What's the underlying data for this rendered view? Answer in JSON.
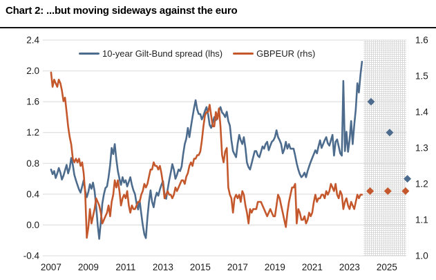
{
  "title": "Chart 2: ...but moving sideways against the euro",
  "legend": [
    {
      "label": "10-year Gilt-Bund spread (lhs)",
      "color": "#4d6c8d"
    },
    {
      "label": "GBPEUR (rhs)",
      "color": "#c4582c"
    }
  ],
  "colors": {
    "gridline": "#d9d9d9",
    "hatch_line": "#d8d8d8",
    "text": "#1a1a1a",
    "title_rule": "#111111",
    "blue_series": "#4d6c8d",
    "orange_series": "#c4582c"
  },
  "chart_data": {
    "type": "line",
    "title": "Chart 2: ...but moving sideways against the euro",
    "grid": "horizontal",
    "legend_position": "top",
    "x_axis": {
      "tick_labels": [
        "2007",
        "2009",
        "2011",
        "2013",
        "2015",
        "2017",
        "2019",
        "2021",
        "2023",
        "2025"
      ],
      "tick_values": [
        2007,
        2009,
        2011,
        2013,
        2015,
        2017,
        2019,
        2021,
        2023,
        2025
      ],
      "range": [
        2006.56,
        2026.04
      ]
    },
    "y_axis_left": {
      "title": "10-year Gilt-Bund spread",
      "tick_labels": [
        "2.4",
        "2.0",
        "1.6",
        "1.2",
        "0.8",
        "0.4",
        "0.0",
        "-0.4"
      ],
      "tick_values": [
        2.4,
        2.0,
        1.6,
        1.2,
        0.8,
        0.4,
        0.0,
        -0.4
      ],
      "range": [
        -0.4,
        2.4
      ]
    },
    "y_axis_right": {
      "title": "GBPEUR",
      "tick_labels": [
        "1.6",
        "1.5",
        "1.4",
        "1.3",
        "1.2",
        "1.1",
        "1.0"
      ],
      "tick_values": [
        1.6,
        1.5,
        1.4,
        1.3,
        1.2,
        1.1,
        1.0
      ],
      "range": [
        1.0,
        1.6
      ]
    },
    "forecast_region": {
      "x_start": 2023.75,
      "x_end": 2026.04
    },
    "series": [
      {
        "name": "10-year Gilt-Bund spread (lhs)",
        "axis": "left",
        "color": "#4d6c8d",
        "x_start": 2007.0,
        "x_step": 0.0833333,
        "values": [
          0.72,
          0.66,
          0.7,
          0.61,
          0.67,
          0.74,
          0.68,
          0.59,
          0.64,
          0.71,
          0.78,
          0.67,
          0.74,
          0.87,
          0.78,
          0.65,
          0.58,
          0.52,
          0.46,
          0.42,
          0.5,
          0.58,
          0.44,
          0.36,
          0.43,
          0.53,
          0.47,
          0.55,
          0.44,
          0.25,
          0.0,
          -0.18,
          0.04,
          0.28,
          0.4,
          0.48,
          0.5,
          0.62,
          0.78,
          1.0,
          0.92,
          1.05,
          0.85,
          0.7,
          0.6,
          0.52,
          0.62,
          0.55,
          0.58,
          0.5,
          0.56,
          0.62,
          0.52,
          0.45,
          0.4,
          0.28,
          0.2,
          0.32,
          0.15,
          0.0,
          -0.12,
          -0.17,
          0.1,
          0.3,
          0.45,
          0.3,
          0.23,
          0.35,
          0.42,
          0.38,
          0.46,
          0.52,
          0.57,
          0.4,
          0.34,
          0.46,
          0.58,
          0.68,
          0.79,
          0.72,
          0.6,
          0.65,
          0.72,
          0.7,
          0.76,
          0.92,
          1.05,
          1.12,
          1.26,
          1.14,
          1.28,
          1.4,
          1.52,
          1.62,
          1.5,
          1.44,
          1.44,
          1.37,
          1.42,
          1.48,
          1.53,
          1.44,
          1.3,
          1.26,
          1.33,
          1.4,
          1.36,
          1.42,
          1.48,
          1.53,
          1.46,
          1.44,
          1.4,
          1.47,
          1.35,
          1.29,
          1.1,
          0.96,
          0.92,
          0.88,
          1.05,
          1.17,
          1.1,
          1.05,
          1.14,
          1.0,
          0.81,
          0.75,
          0.72,
          0.8,
          0.88,
          0.96,
          0.96,
          0.9,
          0.88,
          0.95,
          1.02,
          0.99,
          1.05,
          1.08,
          0.97,
          1.03,
          1.08,
          1.1,
          1.14,
          1.23,
          1.14,
          1.1,
          1.05,
          0.93,
          0.98,
          1.08,
          0.99,
          1.05,
          0.99,
          0.99,
          0.99,
          0.9,
          0.8,
          0.72,
          0.66,
          0.62,
          0.64,
          0.68,
          0.62,
          0.7,
          0.76,
          0.82,
          0.87,
          0.92,
          0.97,
          0.93,
          1.02,
          1.1,
          1.0,
          1.05,
          1.1,
          1.14,
          1.06,
          1.03,
          1.1,
          1.17,
          0.9,
          1.08,
          1.11,
          1.02,
          0.93,
          0.9,
          1.87,
          0.96,
          1.21,
          0.95,
          1.1,
          1.35,
          1.05,
          1.3,
          1.5,
          1.84,
          1.72,
          1.95,
          2.12
        ],
        "forecast": {
          "x": [
            2024.15,
            2025.15,
            2026.1
          ],
          "values": [
            1.6,
            1.2,
            0.6
          ]
        }
      },
      {
        "name": "GBPEUR (rhs)",
        "axis": "right",
        "color": "#c4582c",
        "x_start": 2007.0,
        "x_step": 0.0833333,
        "values": [
          1.51,
          1.47,
          1.49,
          1.48,
          1.47,
          1.49,
          1.48,
          1.46,
          1.43,
          1.44,
          1.4,
          1.36,
          1.33,
          1.31,
          1.27,
          1.26,
          1.27,
          1.26,
          1.27,
          1.25,
          1.26,
          1.23,
          1.17,
          1.05,
          1.08,
          1.13,
          1.09,
          1.11,
          1.13,
          1.16,
          1.15,
          1.14,
          1.12,
          1.09,
          1.1,
          1.11,
          1.12,
          1.14,
          1.11,
          1.15,
          1.17,
          1.21,
          1.19,
          1.21,
          1.18,
          1.14,
          1.16,
          1.17,
          1.16,
          1.18,
          1.14,
          1.12,
          1.14,
          1.13,
          1.13,
          1.14,
          1.15,
          1.15,
          1.17,
          1.18,
          1.2,
          1.19,
          1.2,
          1.22,
          1.24,
          1.24,
          1.26,
          1.25,
          1.25,
          1.24,
          1.25,
          1.23,
          1.2,
          1.16,
          1.17,
          1.18,
          1.17,
          1.17,
          1.16,
          1.17,
          1.19,
          1.18,
          1.19,
          1.2,
          1.21,
          1.21,
          1.2,
          1.22,
          1.23,
          1.25,
          1.26,
          1.25,
          1.27,
          1.27,
          1.28,
          1.28,
          1.29,
          1.32,
          1.36,
          1.39,
          1.4,
          1.4,
          1.42,
          1.39,
          1.36,
          1.36,
          1.4,
          1.38,
          1.41,
          1.36,
          1.28,
          1.26,
          1.29,
          1.3,
          1.19,
          1.17,
          1.16,
          1.12,
          1.16,
          1.17,
          1.16,
          1.17,
          1.15,
          1.18,
          1.17,
          1.14,
          1.12,
          1.09,
          1.13,
          1.12,
          1.13,
          1.13,
          1.13,
          1.15,
          1.15,
          1.15,
          1.14,
          1.13,
          1.12,
          1.11,
          1.12,
          1.13,
          1.12,
          1.11,
          1.11,
          1.14,
          1.17,
          1.16,
          1.14,
          1.12,
          1.1,
          1.08,
          1.12,
          1.15,
          1.17,
          1.19,
          1.19,
          1.2,
          1.09,
          1.13,
          1.12,
          1.1,
          1.1,
          1.11,
          1.09,
          1.1,
          1.12,
          1.11,
          1.12,
          1.15,
          1.17,
          1.15,
          1.16,
          1.16,
          1.17,
          1.17,
          1.16,
          1.18,
          1.17,
          1.18,
          1.2,
          1.19,
          1.18,
          1.2,
          1.17,
          1.16,
          1.18,
          1.17,
          1.13,
          1.15,
          1.16,
          1.14,
          1.13,
          1.15,
          1.14,
          1.13,
          1.15,
          1.17,
          1.16,
          1.17,
          1.17
        ],
        "forecast": {
          "x": [
            2024.1,
            2025.05,
            2026.0
          ],
          "values": [
            1.18,
            1.18,
            1.18
          ]
        }
      }
    ]
  }
}
